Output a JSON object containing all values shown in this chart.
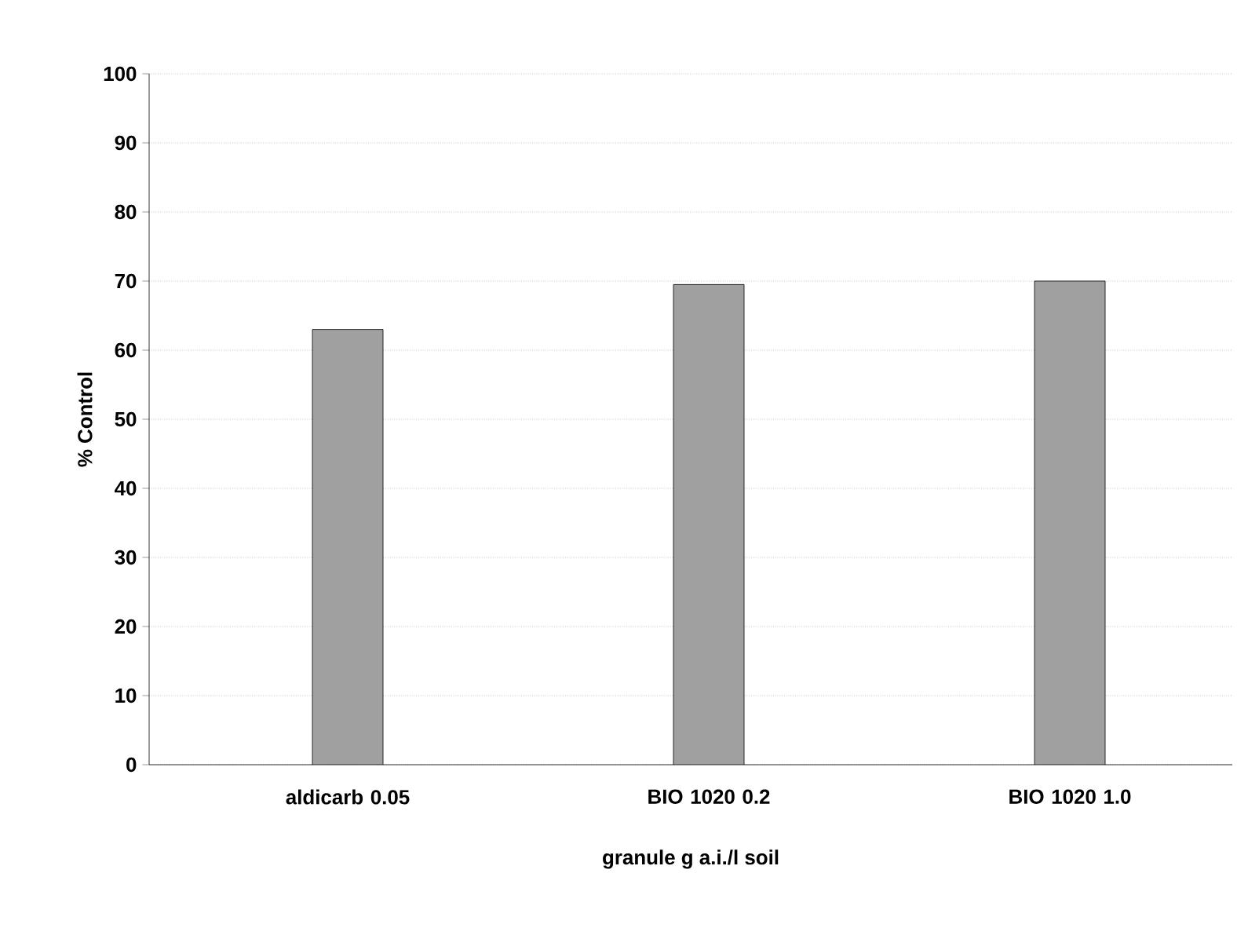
{
  "chart_data": {
    "type": "bar",
    "xlabel": "granule g a.i./l soil",
    "ylabel": "% Control",
    "categories": [
      "aldicarb 0.05",
      "BIO 1020 0.2",
      "BIO 1020 1.0"
    ],
    "values": [
      63,
      69.5,
      70
    ],
    "color": "#a0a0a0",
    "ylim": [
      0,
      100
    ],
    "yticks": [
      0,
      10,
      20,
      30,
      40,
      50,
      60,
      70,
      80,
      90,
      100
    ],
    "grid": "y"
  }
}
